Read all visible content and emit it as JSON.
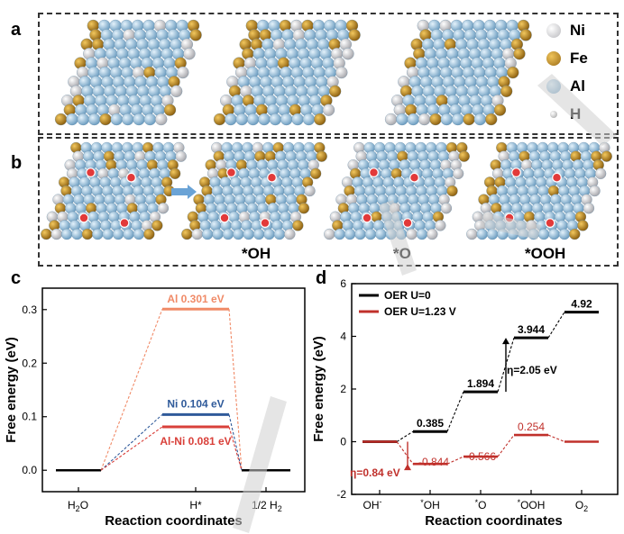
{
  "panels": {
    "a": "a",
    "b": "b",
    "c": "c",
    "d": "d"
  },
  "atom_legend": [
    {
      "label": "Ni",
      "color": "#d2d2d6"
    },
    {
      "label": "Fe",
      "color": "#b8862a"
    },
    {
      "label": "Al",
      "color": "#8fbad6"
    },
    {
      "label": "H",
      "color": "#cfcfcf"
    }
  ],
  "surface_labels": [
    "*OH",
    "*O",
    "*OOH"
  ],
  "chart_data": [
    {
      "type": "line",
      "panel": "c",
      "ylabel": "Free energy (eV)",
      "xlabel": "Reaction coordinates",
      "xticks": [
        "H2O",
        "H*",
        "1/2 H2"
      ],
      "yticks": [
        "0.0",
        "0.1",
        "0.2",
        "0.3"
      ],
      "ylim": [
        -0.04,
        0.34
      ],
      "series": [
        {
          "name": "Al",
          "label": "Al 0.301 eV",
          "values": [
            0,
            0.301,
            0
          ],
          "color": "#f08a67"
        },
        {
          "name": "Ni",
          "label": "Ni 0.104 eV",
          "values": [
            0,
            0.104,
            0
          ],
          "color": "#2f5a9a"
        },
        {
          "name": "Al-Ni",
          "label": "Al-Ni 0.081 eV",
          "values": [
            0,
            0.081,
            0
          ],
          "color": "#d9403a"
        }
      ]
    },
    {
      "type": "line",
      "panel": "d",
      "ylabel": "Free energy (eV)",
      "xlabel": "Reaction coordinates",
      "xticks": [
        "OH-",
        "*OH",
        "*O",
        "*OOH",
        "O2"
      ],
      "yticks": [
        "-2",
        "0",
        "2",
        "4",
        "6"
      ],
      "ylim": [
        -2,
        6
      ],
      "grid": false,
      "legend_position": "top-left",
      "series": [
        {
          "name": "OER U=0",
          "values": [
            0,
            0.385,
            1.894,
            3.944,
            4.92
          ],
          "labels": [
            "",
            "0.385",
            "1.894",
            "3.944",
            "4.92"
          ],
          "color": "#000000"
        },
        {
          "name": "OER U=1.23 V",
          "values": [
            0,
            -0.844,
            -0.566,
            0.254,
            0
          ],
          "labels": [
            "",
            "-0.844",
            "-0.566",
            "0.254",
            ""
          ],
          "color": "#c0302b"
        }
      ],
      "annotations": [
        "η=2.05 eV",
        "η=0.84 eV"
      ]
    }
  ]
}
